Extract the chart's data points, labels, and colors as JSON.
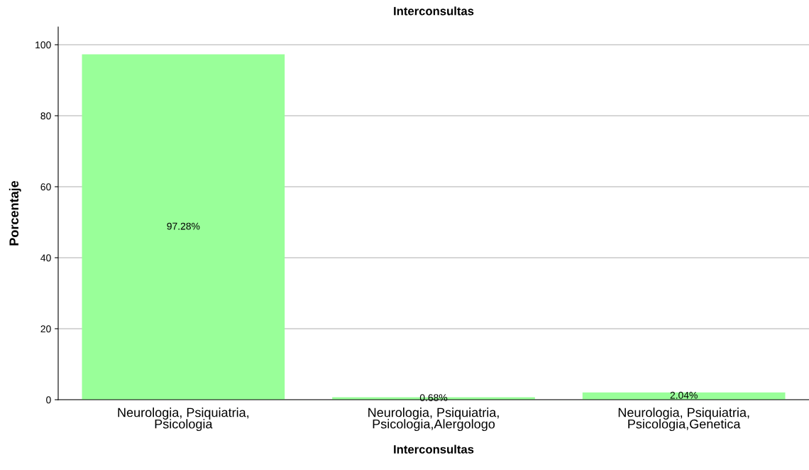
{
  "chart_data": {
    "type": "bar",
    "title": "Interconsultas",
    "xlabel": "Interconsultas",
    "ylabel": "Porcentaje",
    "categories": [
      "Neurologia, Psiquiatria,\nPsicologia",
      "Neurologia, Psiquiatria,\nPsicologia,Alergologo",
      "Neurologia, Psiquiatria,\nPsicologia,Genetica"
    ],
    "values": [
      97.28,
      0.68,
      2.04
    ],
    "value_labels": [
      "97.28%",
      "0.68%",
      "2.04%"
    ],
    "color": "#99ff99",
    "ylim": [
      0,
      105
    ],
    "yticks": [
      0,
      20,
      40,
      60,
      80,
      100
    ],
    "grid": "y",
    "legend": false
  }
}
